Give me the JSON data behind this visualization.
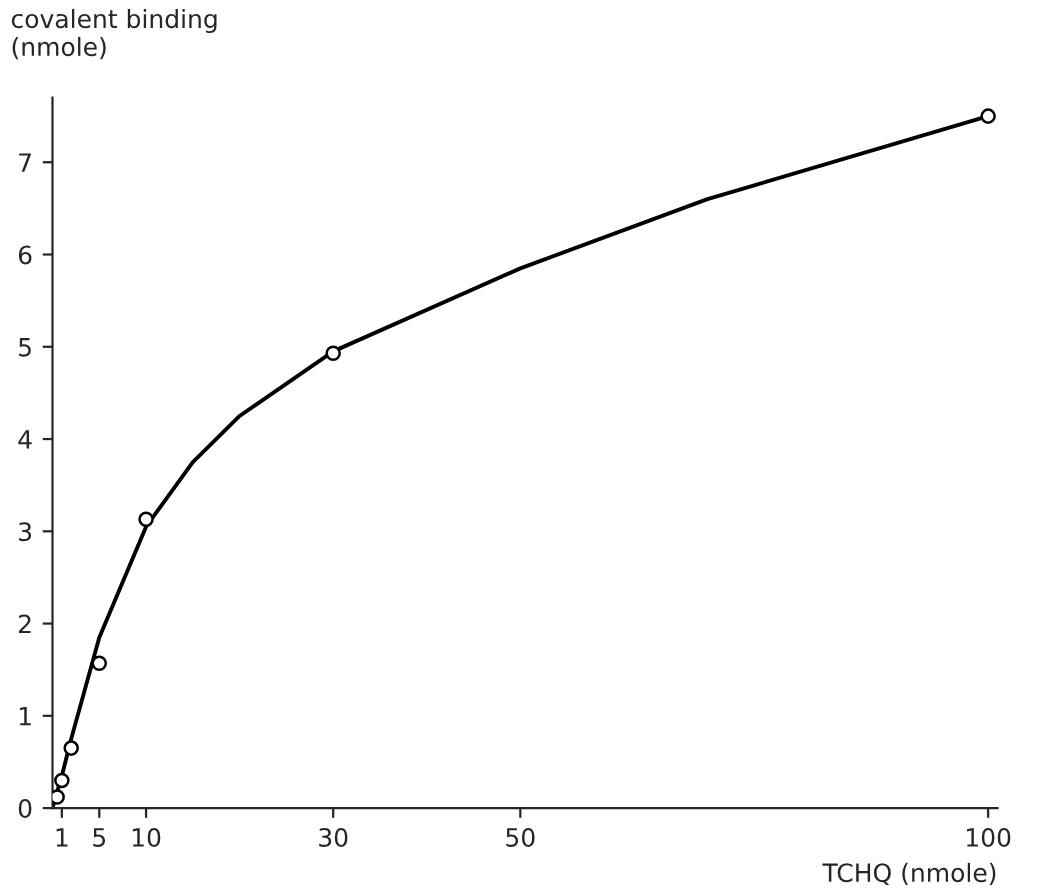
{
  "chart_data": {
    "type": "line",
    "xlabel": "TCHQ (nmole)",
    "ylabel": "covalent binding\n(nmole)",
    "xlim": [
      0,
      101
    ],
    "ylim": [
      0,
      7.7
    ],
    "xticks": [
      1,
      5,
      10,
      30,
      50,
      100
    ],
    "yticks": [
      0,
      1,
      2,
      3,
      4,
      5,
      6,
      7
    ],
    "grid": false,
    "series": [
      {
        "type": "scatter",
        "marker": "circle",
        "color": "#000000",
        "x": [
          0.5,
          1,
          2,
          5,
          10,
          30,
          100
        ],
        "values": [
          0.12,
          0.3,
          0.65,
          1.57,
          3.13,
          4.93,
          7.5
        ]
      },
      {
        "color": "#000000",
        "line_style": "solid",
        "x": [
          0,
          1,
          2,
          5,
          10,
          15,
          20,
          30,
          50,
          70,
          100
        ],
        "values": [
          0,
          0.35,
          0.75,
          1.85,
          3.05,
          3.75,
          4.25,
          4.95,
          5.85,
          6.6,
          7.5
        ]
      }
    ]
  }
}
